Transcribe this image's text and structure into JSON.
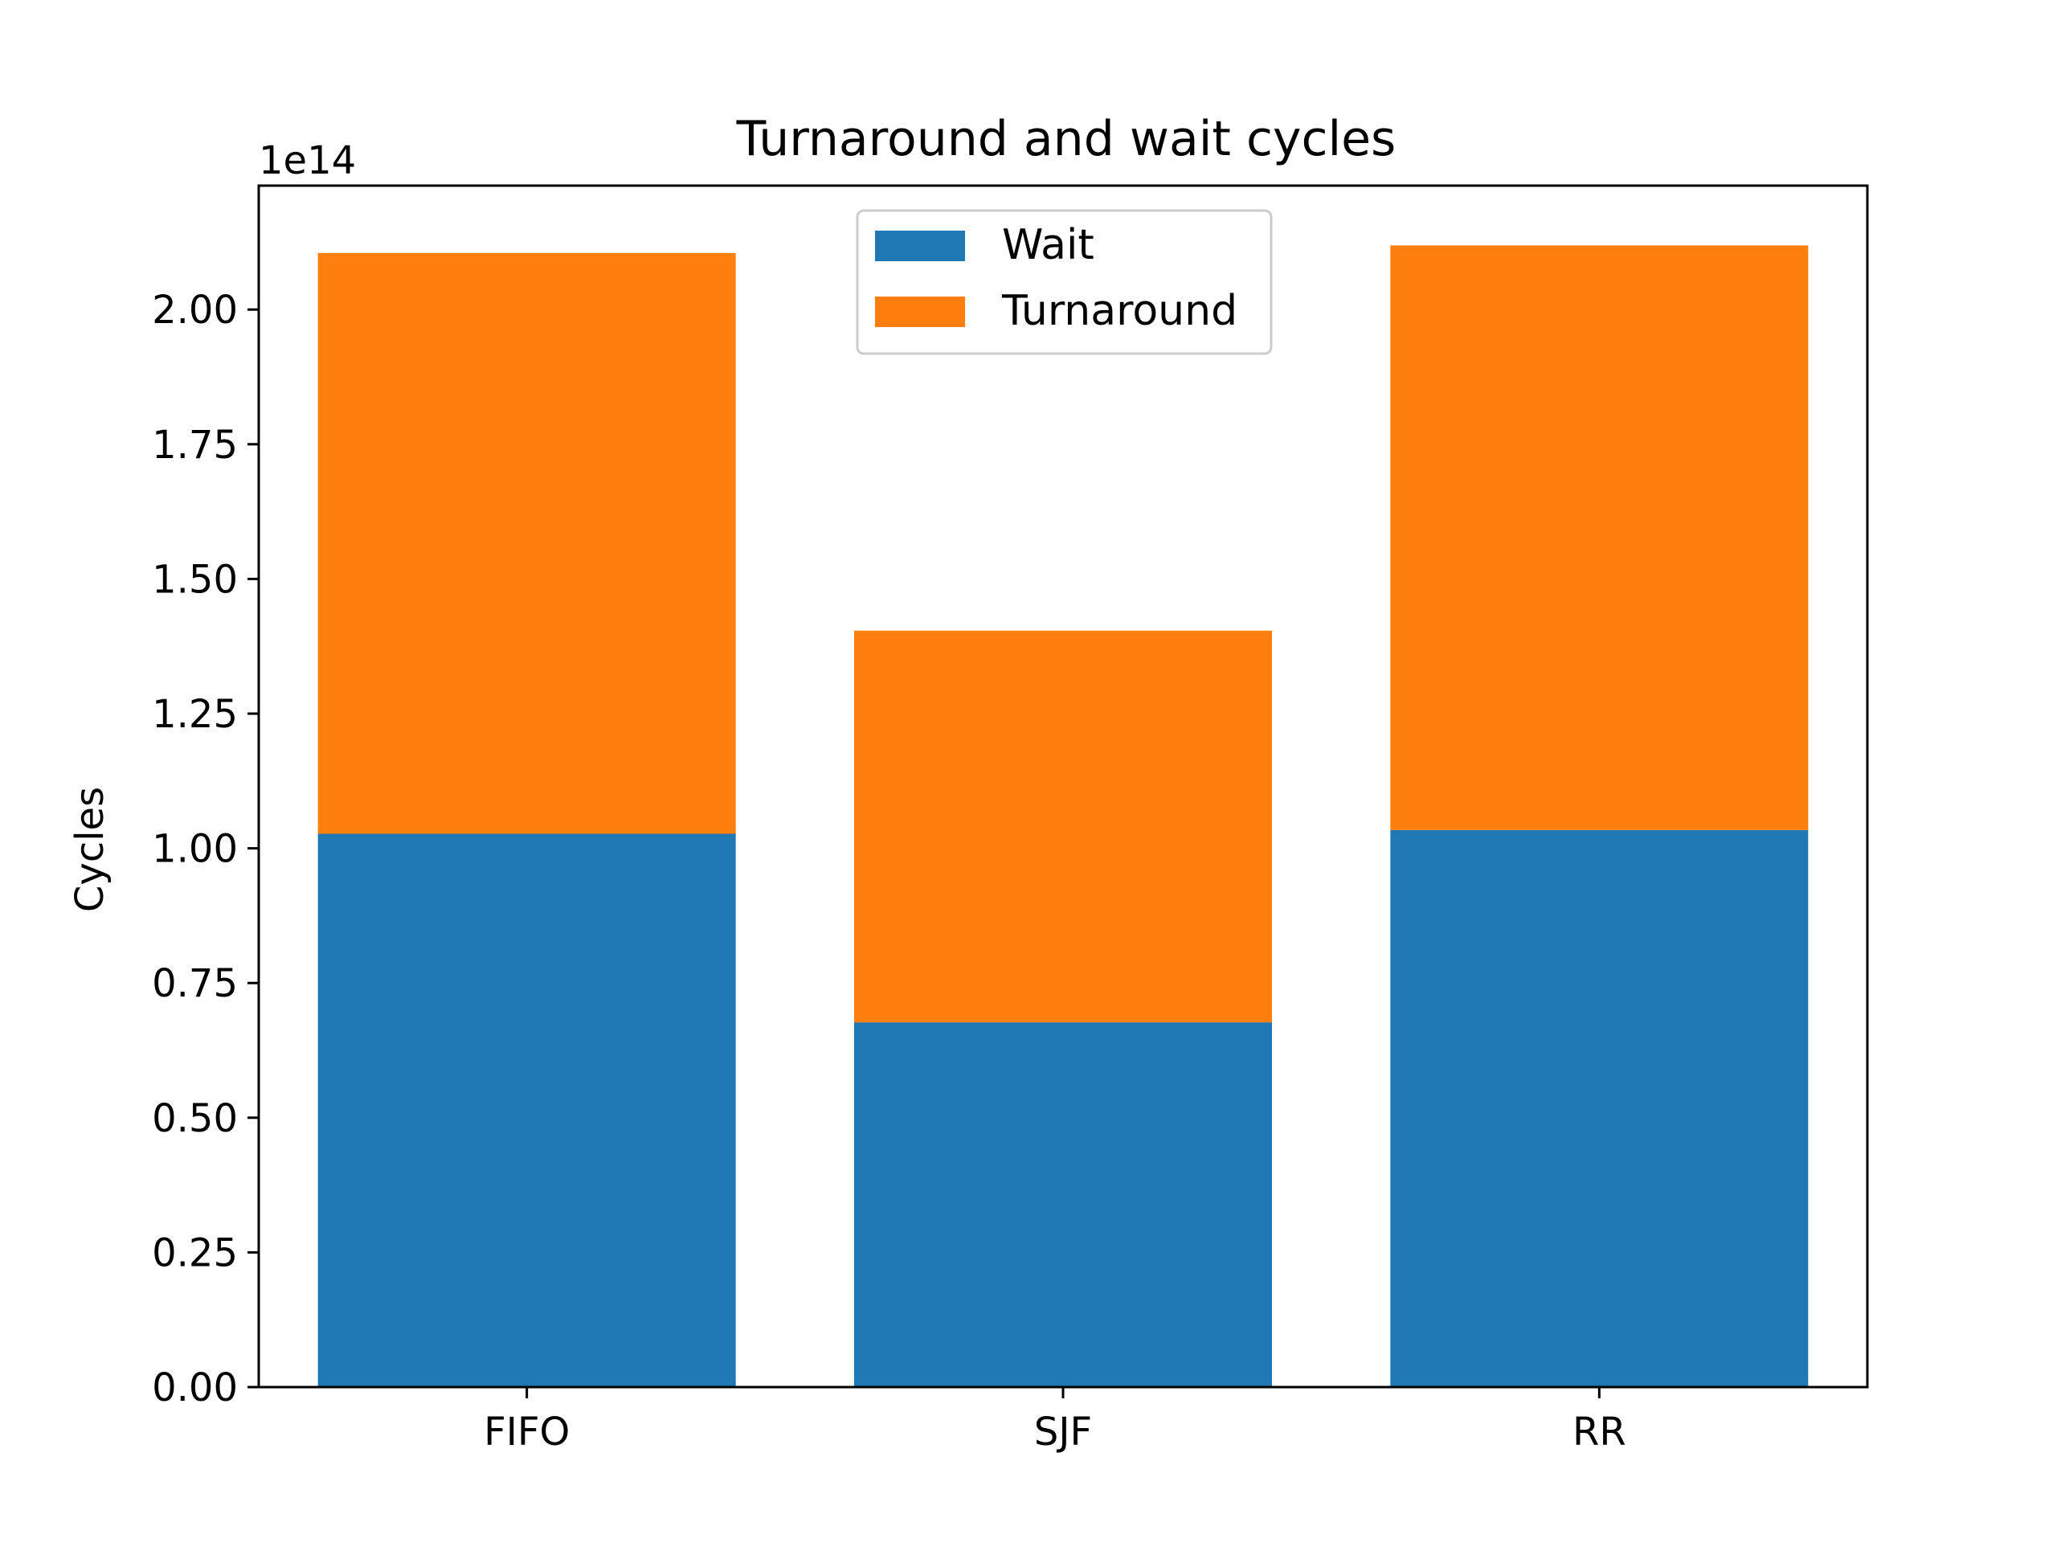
{
  "chart_data": {
    "type": "bar",
    "stacked": true,
    "title": "Turnaround and wait cycles",
    "ylabel": "Cycles",
    "xlabel": "",
    "y_offset_label": "1e14",
    "categories": [
      "FIFO",
      "SJF",
      "RR"
    ],
    "series": [
      {
        "name": "Wait",
        "color": "#1f77b4",
        "values": [
          1.027,
          0.677,
          1.034
        ]
      },
      {
        "name": "Turnaround",
        "color": "#ff7f0e",
        "values": [
          1.078,
          0.727,
          1.085
        ]
      }
    ],
    "ylim": [
      0,
      2.23
    ],
    "yticks": [
      "0.00",
      "0.25",
      "0.50",
      "0.75",
      "1.00",
      "1.25",
      "1.50",
      "1.75",
      "2.00"
    ],
    "ytick_values": [
      0,
      0.25,
      0.5,
      0.75,
      1.0,
      1.25,
      1.5,
      1.75,
      2.0
    ],
    "grid": false,
    "legend_position": "upper-center"
  }
}
